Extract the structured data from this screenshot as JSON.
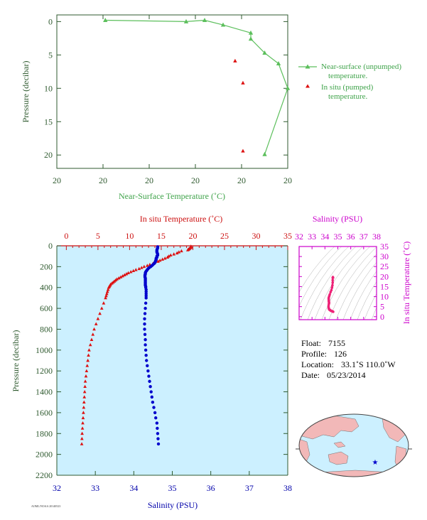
{
  "chart_data": [
    {
      "id": "near-surface",
      "type": "line",
      "xlabel": "Near-Surface Temperature (˚C)",
      "ylabel": "Pressure (decibar)",
      "x_ticks": [
        "20",
        "20",
        "20",
        "20",
        "20",
        "20"
      ],
      "y_ticks": [
        "0",
        "5",
        "10",
        "15",
        "20"
      ],
      "ylim": [
        22,
        -1
      ],
      "series": [
        {
          "name": "Near-surface (unpumped)",
          "name2": "temperature.",
          "color": "#5cbf5c",
          "marker": "triangle",
          "x": [
            19.705,
            19.88,
            19.92,
            19.96,
            20.02,
            20.02,
            20.05,
            20.08,
            20.1,
            20.05
          ],
          "y": [
            -0.2,
            0.0,
            -0.2,
            0.5,
            1.7,
            2.6,
            4.7,
            6.3,
            10.0,
            19.9
          ]
        },
        {
          "name": "In situ (pumped)",
          "name2": "temperature.",
          "color": "#dd1111",
          "marker": "triangle",
          "x": [
            19.986,
            20.003,
            20.003
          ],
          "y": [
            5.9,
            9.2,
            19.4
          ]
        }
      ]
    },
    {
      "id": "profile",
      "type": "scatter",
      "ylabel": "Pressure (decibar)",
      "y_ticks": [
        "0",
        "200",
        "400",
        "600",
        "800",
        "1000",
        "1200",
        "1400",
        "1600",
        "1800",
        "2000",
        "2200"
      ],
      "ylim": [
        2200,
        0
      ],
      "top_axis": {
        "label": "In situ Temperature (˚C)",
        "ticks": [
          "0",
          "5",
          "10",
          "15",
          "20",
          "25",
          "30",
          "35"
        ],
        "xlim": [
          -1.5,
          35
        ]
      },
      "bottom_axis": {
        "label": "Salinity (PSU)",
        "ticks": [
          "32",
          "33",
          "34",
          "35",
          "36",
          "37",
          "38"
        ],
        "xlim": [
          32,
          38
        ]
      },
      "series": [
        {
          "name": "Temperature",
          "axis": "top",
          "color": "#dd1111",
          "marker": "triangle",
          "pressure": [
            5,
            10,
            15,
            20,
            25,
            30,
            35,
            40,
            50,
            60,
            70,
            80,
            90,
            100,
            110,
            120,
            130,
            140,
            150,
            160,
            170,
            180,
            190,
            200,
            210,
            220,
            230,
            240,
            250,
            260,
            270,
            280,
            290,
            300,
            310,
            320,
            330,
            340,
            350,
            360,
            370,
            380,
            390,
            400,
            420,
            440,
            460,
            480,
            500,
            550,
            600,
            650,
            700,
            750,
            800,
            850,
            900,
            950,
            1000,
            1050,
            1100,
            1150,
            1200,
            1250,
            1300,
            1350,
            1400,
            1450,
            1500,
            1550,
            1600,
            1650,
            1700,
            1750,
            1800,
            1850,
            1900
          ],
          "temperature": [
            19.7,
            19.7,
            19.7,
            19.6,
            19.5,
            19.4,
            19.3,
            19.2,
            18.2,
            17.8,
            17.5,
            17.0,
            16.5,
            16.2,
            16.0,
            15.6,
            15.2,
            14.8,
            14.5,
            14.0,
            13.7,
            13.2,
            12.8,
            12.3,
            11.9,
            11.5,
            11.0,
            10.6,
            10.2,
            9.8,
            9.5,
            9.2,
            8.9,
            8.6,
            8.3,
            8.0,
            7.8,
            7.6,
            7.4,
            7.2,
            7.0,
            6.9,
            6.8,
            6.7,
            6.6,
            6.5,
            6.4,
            6.3,
            6.2,
            5.9,
            5.6,
            5.3,
            5.0,
            4.7,
            4.4,
            4.2,
            4.0,
            3.8,
            3.6,
            3.5,
            3.4,
            3.3,
            3.2,
            3.1,
            3.0,
            2.95,
            2.9,
            2.85,
            2.8,
            2.75,
            2.7,
            2.65,
            2.6,
            2.55,
            2.5,
            2.47,
            2.44
          ]
        },
        {
          "name": "Salinity",
          "axis": "bottom",
          "color": "#0000cc",
          "marker": "circle",
          "pressure": [
            10,
            20,
            30,
            40,
            50,
            60,
            70,
            80,
            90,
            100,
            110,
            120,
            130,
            140,
            150,
            160,
            170,
            180,
            190,
            200,
            210,
            220,
            230,
            240,
            250,
            260,
            270,
            280,
            290,
            300,
            310,
            320,
            330,
            340,
            350,
            360,
            370,
            380,
            390,
            400,
            420,
            440,
            460,
            480,
            500,
            550,
            600,
            650,
            700,
            750,
            800,
            850,
            900,
            950,
            1000,
            1050,
            1100,
            1150,
            1200,
            1250,
            1300,
            1350,
            1400,
            1450,
            1500,
            1550,
            1600,
            1650,
            1700,
            1750,
            1800,
            1850,
            1900
          ],
          "salinity": [
            34.62,
            34.62,
            34.61,
            34.6,
            34.6,
            34.6,
            34.61,
            34.62,
            34.62,
            34.6,
            34.6,
            34.58,
            34.58,
            34.57,
            34.56,
            34.55,
            34.53,
            34.5,
            34.47,
            34.44,
            34.4,
            34.37,
            34.35,
            34.33,
            34.31,
            34.3,
            34.3,
            34.29,
            34.29,
            34.29,
            34.3,
            34.3,
            34.3,
            34.3,
            34.3,
            34.3,
            34.3,
            34.3,
            34.31,
            34.31,
            34.32,
            34.32,
            34.32,
            34.32,
            34.32,
            34.31,
            34.3,
            34.29,
            34.28,
            34.28,
            34.28,
            34.29,
            34.3,
            34.3,
            34.31,
            34.32,
            34.33,
            34.35,
            34.37,
            34.39,
            34.41,
            34.43,
            34.45,
            34.47,
            34.49,
            34.52,
            34.55,
            34.57,
            34.6,
            34.61,
            34.62,
            34.63,
            34.64
          ]
        }
      ]
    },
    {
      "id": "ts-diagram",
      "type": "scatter",
      "top_axis": {
        "label": "Salinity (PSU)",
        "ticks": [
          "32",
          "33",
          "34",
          "35",
          "36",
          "37",
          "38"
        ],
        "xlim": [
          32,
          38
        ]
      },
      "right_axis": {
        "label": "In situ Temperature (˚C)",
        "ticks": [
          "0",
          "5",
          "10",
          "15",
          "20",
          "25",
          "30",
          "35"
        ],
        "ylim": [
          -1.5,
          35
        ]
      },
      "series": [
        {
          "name": "T-S",
          "color": "#ee2277",
          "salinity": [
            34.62,
            34.61,
            34.6,
            34.6,
            34.58,
            34.55,
            34.5,
            34.44,
            34.37,
            34.33,
            34.3,
            34.29,
            34.3,
            34.3,
            34.31,
            34.32,
            34.32,
            34.3,
            34.28,
            34.29,
            34.31,
            34.33,
            34.37,
            34.41,
            34.45,
            34.49,
            34.55,
            34.6,
            34.62,
            34.64
          ],
          "temperature": [
            19.7,
            19.4,
            18.2,
            17.0,
            15.6,
            14.5,
            13.2,
            12.3,
            11.0,
            10.2,
            9.5,
            8.9,
            8.3,
            7.8,
            7.4,
            7.0,
            6.7,
            6.2,
            5.3,
            4.4,
            4.0,
            3.6,
            3.4,
            3.2,
            3.0,
            2.9,
            2.75,
            2.6,
            2.5,
            2.44
          ]
        }
      ]
    }
  ],
  "info": {
    "float_label": "Float:",
    "float_value": "7155",
    "profile_label": "Profile:",
    "profile_value": "126",
    "location_label": "Location:",
    "location_value": "33.1˚S  110.0˚W",
    "date_label": "Date:",
    "date_value": "05/23/2014"
  },
  "map": {
    "land_color": "#f2b8b8",
    "ocean_color": "#ccf0ff",
    "marker_color": "#0000cc"
  },
  "footer": "AOML/NOAA  20140523"
}
